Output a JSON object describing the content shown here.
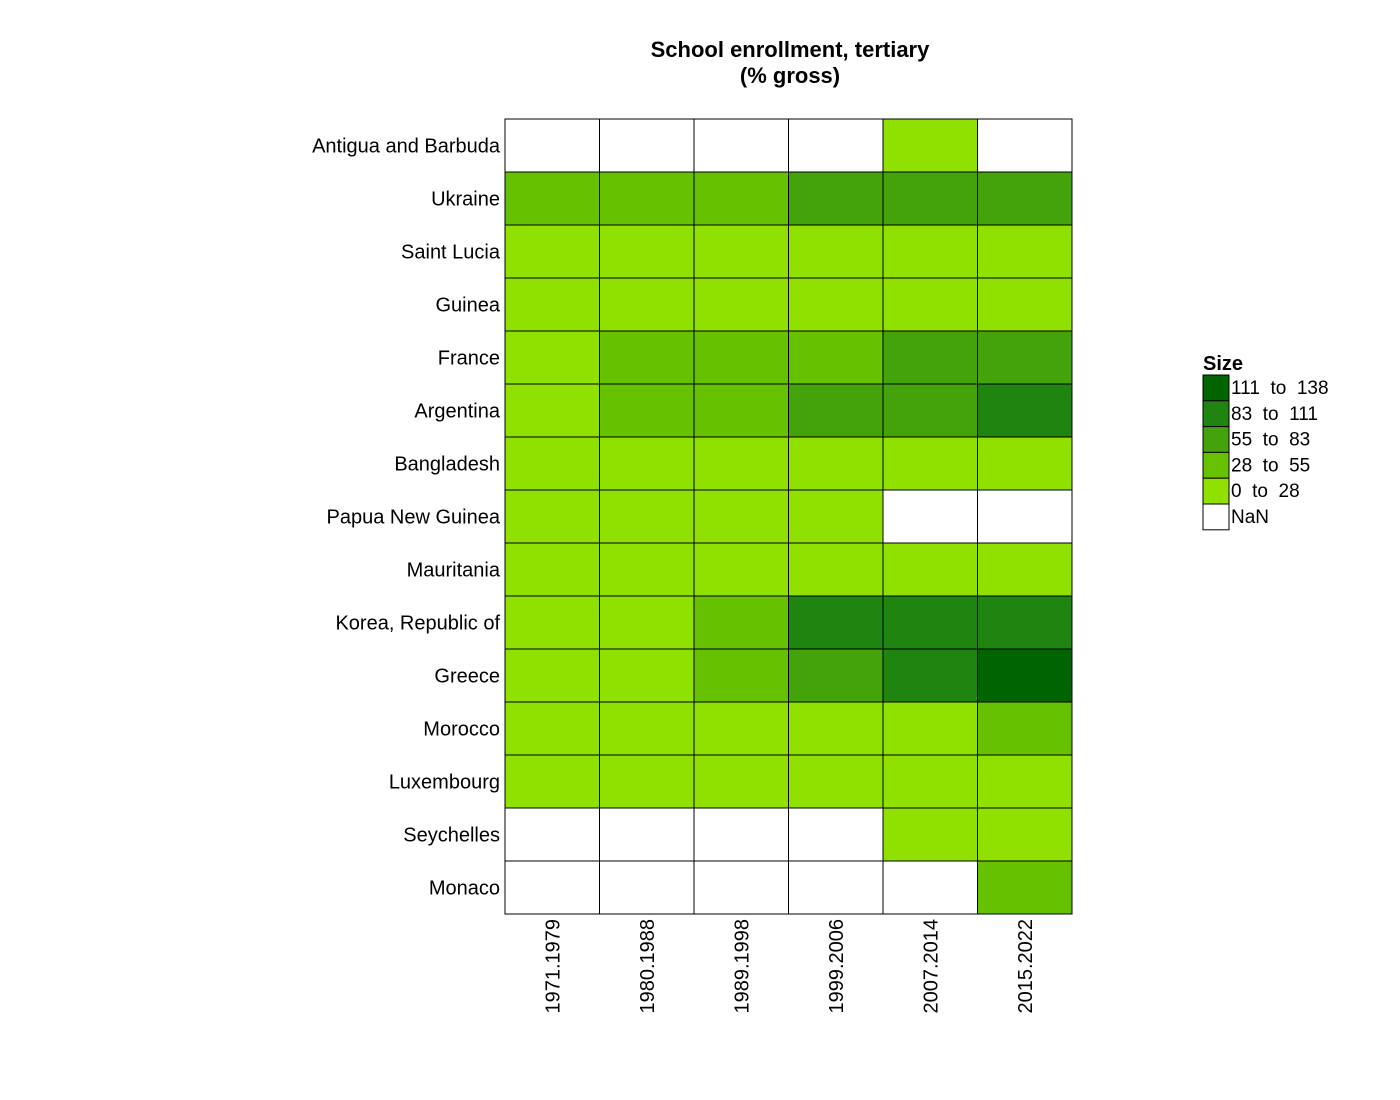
{
  "chart_data": {
    "type": "heatmap",
    "title_lines": [
      "School enrollment, tertiary",
      "(% gross)"
    ],
    "rows": [
      "Antigua and Barbuda",
      "Ukraine",
      "Saint Lucia",
      "Guinea",
      "France",
      "Argentina",
      "Bangladesh",
      "Papua New Guinea",
      "Mauritania",
      "Korea, Republic of",
      "Greece",
      "Morocco",
      "Luxembourg",
      "Seychelles",
      "Monaco"
    ],
    "columns": [
      "1971.1979",
      "1980.1988",
      "1989.1998",
      "1999.2006",
      "2007.2014",
      "2015.2022"
    ],
    "bins": [
      {
        "label": "111  to  138",
        "color": "#006400"
      },
      {
        "label": "83  to  111",
        "color": "#208510"
      },
      {
        "label": "55  to  83",
        "color": "#44a30a"
      },
      {
        "label": "28  to  55",
        "color": "#66c200"
      },
      {
        "label": "0  to  28",
        "color": "#90e000"
      },
      {
        "label": "NaN",
        "color": "#ffffff"
      }
    ],
    "cells": [
      [
        "NaN",
        "NaN",
        "NaN",
        "NaN",
        "0  to  28",
        "NaN"
      ],
      [
        "28  to  55",
        "28  to  55",
        "28  to  55",
        "55  to  83",
        "55  to  83",
        "55  to  83"
      ],
      [
        "0  to  28",
        "0  to  28",
        "0  to  28",
        "0  to  28",
        "0  to  28",
        "0  to  28"
      ],
      [
        "0  to  28",
        "0  to  28",
        "0  to  28",
        "0  to  28",
        "0  to  28",
        "0  to  28"
      ],
      [
        "0  to  28",
        "28  to  55",
        "28  to  55",
        "28  to  55",
        "55  to  83",
        "55  to  83"
      ],
      [
        "0  to  28",
        "28  to  55",
        "28  to  55",
        "55  to  83",
        "55  to  83",
        "83  to  111"
      ],
      [
        "0  to  28",
        "0  to  28",
        "0  to  28",
        "0  to  28",
        "0  to  28",
        "0  to  28"
      ],
      [
        "0  to  28",
        "0  to  28",
        "0  to  28",
        "0  to  28",
        "NaN",
        "NaN"
      ],
      [
        "0  to  28",
        "0  to  28",
        "0  to  28",
        "0  to  28",
        "0  to  28",
        "0  to  28"
      ],
      [
        "0  to  28",
        "0  to  28",
        "28  to  55",
        "83  to  111",
        "83  to  111",
        "83  to  111"
      ],
      [
        "0  to  28",
        "0  to  28",
        "28  to  55",
        "55  to  83",
        "83  to  111",
        "111  to  138"
      ],
      [
        "0  to  28",
        "0  to  28",
        "0  to  28",
        "0  to  28",
        "0  to  28",
        "28  to  55"
      ],
      [
        "0  to  28",
        "0  to  28",
        "0  to  28",
        "0  to  28",
        "0  to  28",
        "0  to  28"
      ],
      [
        "NaN",
        "NaN",
        "NaN",
        "NaN",
        "0  to  28",
        "0  to  28"
      ],
      [
        "NaN",
        "NaN",
        "NaN",
        "NaN",
        "NaN",
        "28  to  55"
      ]
    ],
    "legend": {
      "title": "Size",
      "position": "right"
    },
    "grid": false
  }
}
